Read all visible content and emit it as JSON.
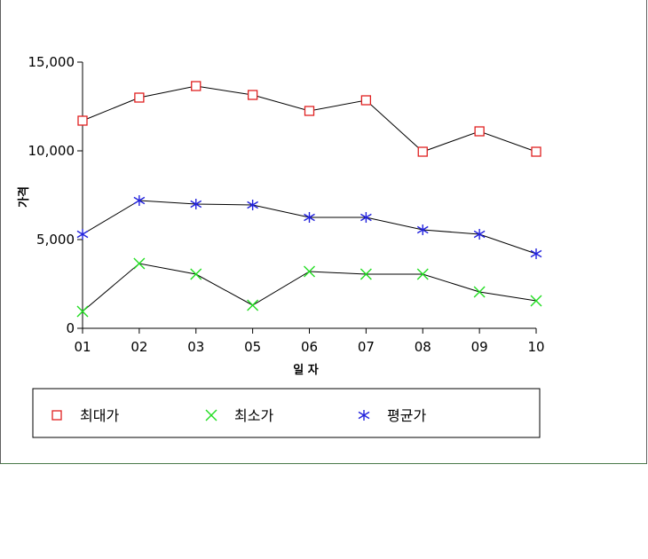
{
  "chart_data": {
    "type": "line",
    "categories": [
      "01",
      "02",
      "03",
      "05",
      "06",
      "07",
      "08",
      "09",
      "10"
    ],
    "ylabel": "가격",
    "xlabel": "일 자",
    "ylim": [
      0,
      15000
    ],
    "yticks": [
      0,
      5000,
      10000,
      15000
    ],
    "ytick_labels": [
      "0",
      "5,000",
      "10,000",
      "15,000"
    ],
    "grid": false,
    "legend_position": "bottom",
    "series": [
      {
        "name": "최대가",
        "marker": "square",
        "color": "#e02020",
        "values": [
          11700,
          13000,
          13650,
          13150,
          12250,
          12850,
          9950,
          11100,
          9950
        ]
      },
      {
        "name": "최소가",
        "marker": "x",
        "color": "#22dd22",
        "values": [
          950,
          3650,
          3050,
          1300,
          3200,
          3050,
          3050,
          2050,
          1550
        ]
      },
      {
        "name": "평균가",
        "marker": "asterisk",
        "color": "#2222dd",
        "values": [
          5300,
          7200,
          7000,
          6950,
          6250,
          6250,
          5550,
          5300,
          4200
        ]
      }
    ]
  }
}
